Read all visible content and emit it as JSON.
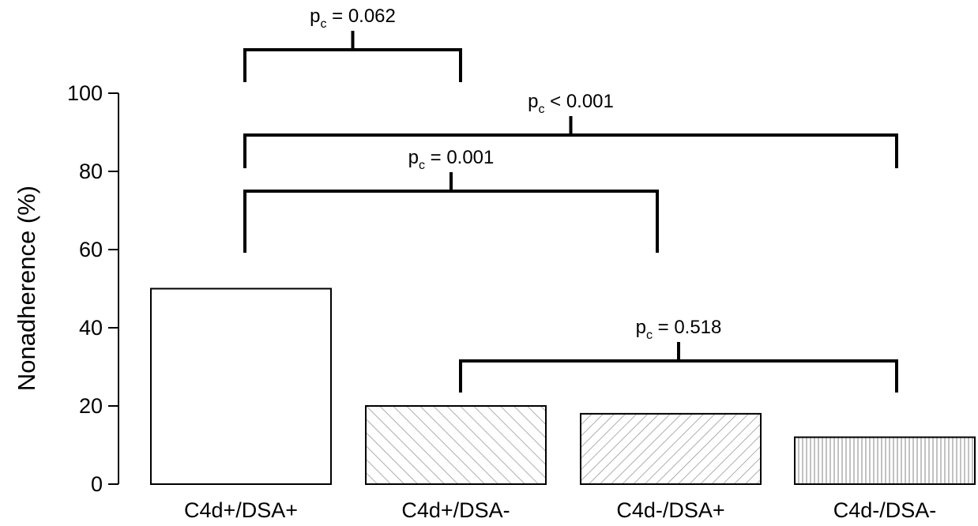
{
  "chart_data": {
    "type": "bar",
    "ylabel": "Nonadherence (%)",
    "xlabel": "",
    "ylim": [
      0,
      100
    ],
    "yticks": [
      0,
      20,
      40,
      60,
      80,
      100
    ],
    "categories": [
      "C4d+/DSA+",
      "C4d+/DSA-",
      "C4d-/DSA+",
      "C4d-/DSA-"
    ],
    "values": [
      50,
      20,
      18,
      12
    ],
    "bar_fills": [
      "none",
      "hatch-backslash",
      "hatch-slash",
      "hatch-vertical"
    ],
    "comparisons": [
      {
        "groups": [
          "C4d+/DSA+",
          "C4d+/DSA-"
        ],
        "p_symbol": "p",
        "p_subscript": "c",
        "relation": "=",
        "p_value": "0.062"
      },
      {
        "groups": [
          "C4d+/DSA+",
          "C4d-/DSA-"
        ],
        "p_symbol": "p",
        "p_subscript": "c",
        "relation": "<",
        "p_value": "0.001"
      },
      {
        "groups": [
          "C4d+/DSA+",
          "C4d-/DSA+"
        ],
        "p_symbol": "p",
        "p_subscript": "c",
        "relation": "=",
        "p_value": "0.001"
      },
      {
        "groups": [
          "C4d+/DSA-",
          "C4d-/DSA-"
        ],
        "p_symbol": "p",
        "p_subscript": "c",
        "relation": "=",
        "p_value": "0.518"
      }
    ]
  }
}
